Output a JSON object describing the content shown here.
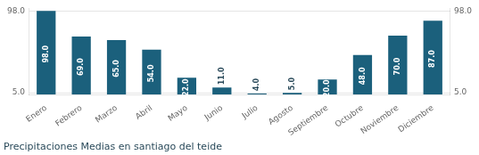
{
  "chart_data": {
    "type": "bar",
    "title": "Precipitaciones Medias en santiago del teide",
    "categories": [
      "Enero",
      "Febrero",
      "Marzo",
      "Abril",
      "Mayo",
      "Junio",
      "Julio",
      "Agosto",
      "Septiembre",
      "Octubre",
      "Noviembre",
      "Diciembre"
    ],
    "values": [
      98.0,
      69.0,
      65.0,
      54.0,
      22.0,
      11.0,
      4.0,
      5.0,
      20.0,
      48.0,
      70.0,
      87.0
    ],
    "value_labels": [
      "98.0",
      "69.0",
      "65.0",
      "54.0",
      "22.0",
      "11.0",
      "4.0",
      "5.0",
      "20.0",
      "48.0",
      "70.0",
      "87.0"
    ],
    "color": "#1b607c",
    "ylim": [
      3,
      101
    ],
    "yticks": [
      {
        "value": 5,
        "label": "5.0"
      },
      {
        "value": 98,
        "label": "98.0"
      }
    ],
    "y2lim": [
      3,
      101
    ],
    "y2ticks": [
      {
        "value": 5,
        "label": "5.0"
      },
      {
        "value": 98,
        "label": "98.0"
      }
    ],
    "grid": true,
    "data_labels": true
  }
}
